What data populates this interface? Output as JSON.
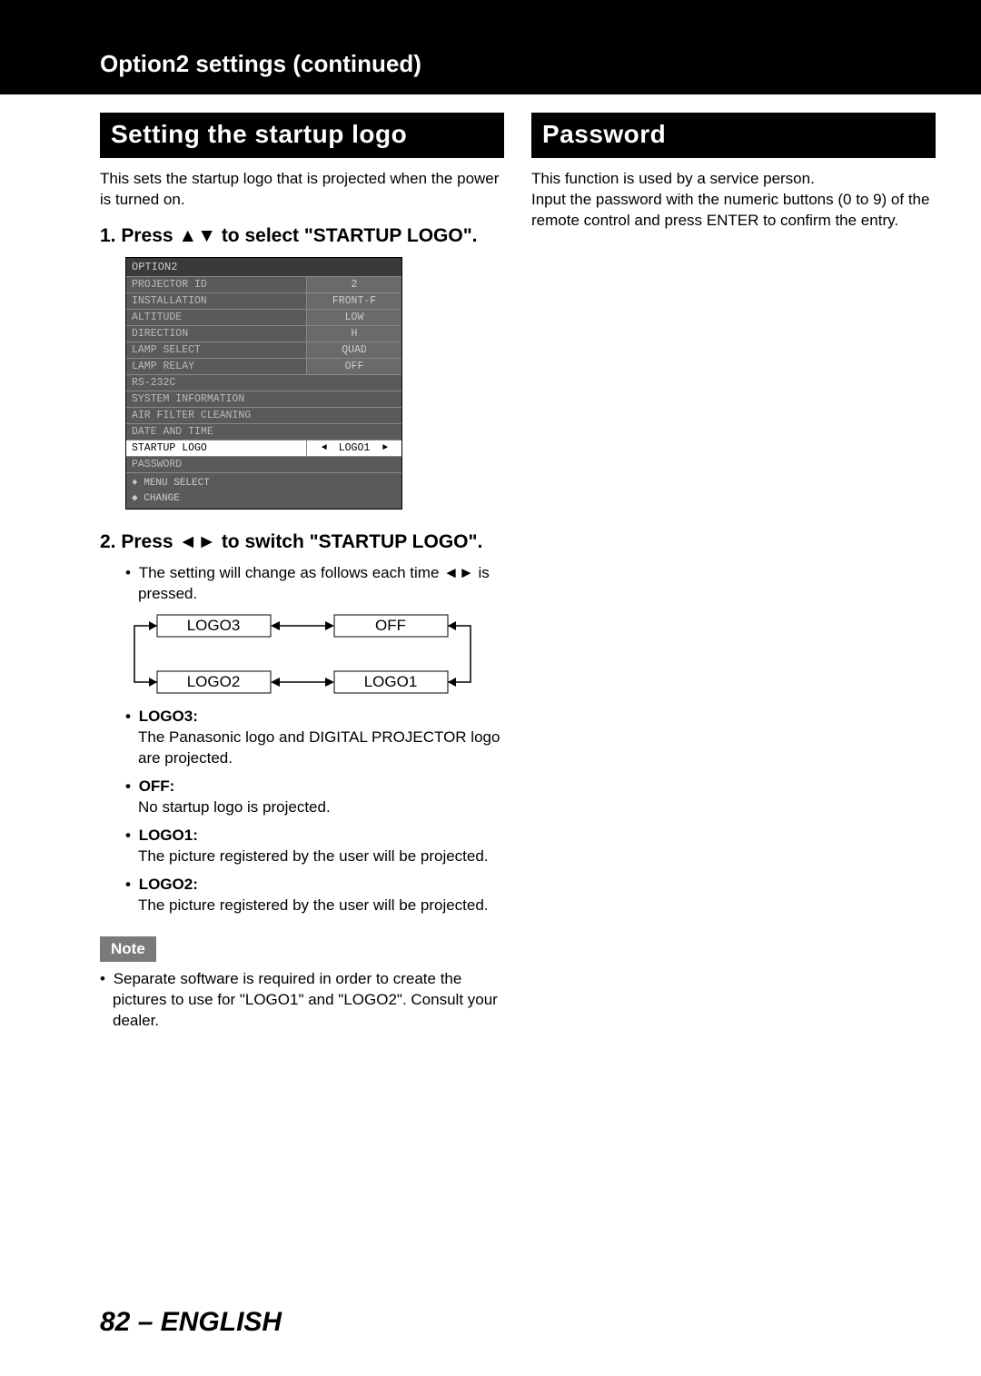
{
  "header": "Option2 settings (continued)",
  "left": {
    "title": "Setting the startup logo",
    "intro": "This sets the startup logo that is projected when the power is turned on.",
    "step1_num": "1.",
    "step1": "Press ▲▼ to select \"STARTUP LOGO\".",
    "step2_num": "2.",
    "step2": "Press ◄► to switch \"STARTUP LOGO\".",
    "step2_sub": "The setting will change as follows each time ◄► is pressed.",
    "menu": {
      "title": "OPTION2",
      "rows": [
        {
          "label": "PROJECTOR ID",
          "value": "2"
        },
        {
          "label": "INSTALLATION",
          "value": "FRONT-F"
        },
        {
          "label": "ALTITUDE",
          "value": "LOW"
        },
        {
          "label": "DIRECTION",
          "value": "H"
        },
        {
          "label": "LAMP SELECT",
          "value": "QUAD"
        },
        {
          "label": "LAMP RELAY",
          "value": "OFF"
        },
        {
          "label": "RS-232C",
          "value": ""
        },
        {
          "label": "SYSTEM INFORMATION",
          "value": ""
        },
        {
          "label": "AIR FILTER CLEANING",
          "value": ""
        },
        {
          "label": "DATE AND TIME",
          "value": ""
        },
        {
          "label": "STARTUP LOGO",
          "value": "LOGO1",
          "selected": true
        },
        {
          "label": "PASSWORD",
          "value": ""
        }
      ],
      "footer1": "MENU SELECT",
      "footer2": "CHANGE"
    },
    "cycle": {
      "b1": "LOGO3",
      "b2": "OFF",
      "b3": "LOGO2",
      "b4": "LOGO1"
    },
    "defs": [
      {
        "term": "LOGO3:",
        "desc": "The Panasonic logo and DIGITAL PROJECTOR logo are projected."
      },
      {
        "term": "OFF:",
        "desc": "No startup logo is projected."
      },
      {
        "term": "LOGO1:",
        "desc": "The picture registered by the user will be projected."
      },
      {
        "term": "LOGO2:",
        "desc": "The picture registered by the user will be projected."
      }
    ],
    "note_label": "Note",
    "note_text": "Separate software is required in order to create the pictures to use for \"LOGO1\" and \"LOGO2\". Consult your dealer."
  },
  "right": {
    "title": "Password",
    "text": "This function is used by a service person.\nInput the password with the numeric buttons (0 to 9) of the remote control and press ENTER to confirm the entry."
  },
  "page_num": "82",
  "page_lang": "ENGLISH"
}
